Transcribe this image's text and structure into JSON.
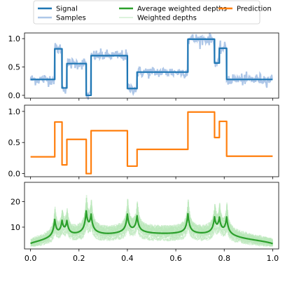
{
  "legend": {
    "items": [
      {
        "label": "Signal",
        "color": "#1f77b4",
        "style": "line-thick"
      },
      {
        "label": "Samples",
        "color": "#aec7e8",
        "style": "line-thick"
      },
      {
        "label": "Average weighted depths",
        "color": "#2ca02c",
        "style": "line-thick"
      },
      {
        "label": "Weighted depths",
        "color": "#b9e7b9",
        "style": "line-thin"
      },
      {
        "label": "Prediction",
        "color": "#ff7f0e",
        "style": "line-thick"
      }
    ]
  },
  "chart_data": [
    {
      "type": "line",
      "xlim": [
        -0.025,
        1.025
      ],
      "ylim": [
        -0.05,
        1.1
      ],
      "yticks": [
        {
          "v": 0.0,
          "label": "0.0"
        },
        {
          "v": 0.5,
          "label": "0.5"
        },
        {
          "v": 1.0,
          "label": "1.0"
        }
      ],
      "series": [
        {
          "name": "Signal",
          "color": "#1f77b4",
          "segments": [
            {
              "x0": 0.0,
              "x1": 0.1,
              "y": 0.28
            },
            {
              "x0": 0.1,
              "x1": 0.13,
              "y": 0.82
            },
            {
              "x0": 0.13,
              "x1": 0.15,
              "y": 0.13
            },
            {
              "x0": 0.15,
              "x1": 0.23,
              "y": 0.56
            },
            {
              "x0": 0.23,
              "x1": 0.25,
              "y": 0.0
            },
            {
              "x0": 0.25,
              "x1": 0.4,
              "y": 0.7
            },
            {
              "x0": 0.4,
              "x1": 0.44,
              "y": 0.12
            },
            {
              "x0": 0.44,
              "x1": 0.65,
              "y": 0.41
            },
            {
              "x0": 0.65,
              "x1": 0.76,
              "y": 0.99
            },
            {
              "x0": 0.76,
              "x1": 0.78,
              "y": 0.57
            },
            {
              "x0": 0.78,
              "x1": 0.81,
              "y": 0.83
            },
            {
              "x0": 0.81,
              "x1": 1.0,
              "y": 0.28
            }
          ]
        },
        {
          "name": "Samples",
          "color": "#aec7e8",
          "noise": 0.05
        }
      ]
    },
    {
      "type": "line",
      "xlim": [
        -0.025,
        1.025
      ],
      "ylim": [
        -0.05,
        1.1
      ],
      "yticks": [
        {
          "v": 0.0,
          "label": "0.0"
        },
        {
          "v": 0.5,
          "label": "0.5"
        },
        {
          "v": 1.0,
          "label": "1.0"
        }
      ],
      "series": [
        {
          "name": "Prediction",
          "color": "#ff7f0e",
          "segments": [
            {
              "x0": 0.0,
              "x1": 0.1,
              "y": 0.27
            },
            {
              "x0": 0.1,
              "x1": 0.13,
              "y": 0.83
            },
            {
              "x0": 0.13,
              "x1": 0.15,
              "y": 0.14
            },
            {
              "x0": 0.15,
              "x1": 0.23,
              "y": 0.55
            },
            {
              "x0": 0.23,
              "x1": 0.25,
              "y": 0.0
            },
            {
              "x0": 0.25,
              "x1": 0.4,
              "y": 0.69
            },
            {
              "x0": 0.4,
              "x1": 0.44,
              "y": 0.12
            },
            {
              "x0": 0.44,
              "x1": 0.65,
              "y": 0.39
            },
            {
              "x0": 0.65,
              "x1": 0.76,
              "y": 0.99
            },
            {
              "x0": 0.76,
              "x1": 0.78,
              "y": 0.58
            },
            {
              "x0": 0.78,
              "x1": 0.81,
              "y": 0.84
            },
            {
              "x0": 0.81,
              "x1": 1.0,
              "y": 0.28
            }
          ]
        }
      ]
    },
    {
      "type": "line",
      "xlim": [
        -0.025,
        1.025
      ],
      "ylim": [
        1.5,
        27.5
      ],
      "yticks": [
        {
          "v": 10,
          "label": "10"
        },
        {
          "v": 20,
          "label": "20"
        }
      ],
      "xticks": [
        {
          "v": 0.0,
          "label": "0.0"
        },
        {
          "v": 0.2,
          "label": "0.2"
        },
        {
          "v": 0.4,
          "label": "0.4"
        },
        {
          "v": 0.6,
          "label": "0.6"
        },
        {
          "v": 0.8,
          "label": "0.8"
        },
        {
          "v": 1.0,
          "label": "1.0"
        }
      ],
      "series": [
        {
          "name": "Average weighted depths",
          "color": "#2ca02c",
          "base": 3.5,
          "peaks": [
            {
              "x": 0.1,
              "h": 8.5
            },
            {
              "x": 0.13,
              "h": 6.5
            },
            {
              "x": 0.15,
              "h": 6.5
            },
            {
              "x": 0.23,
              "h": 10.5
            },
            {
              "x": 0.25,
              "h": 8.5
            },
            {
              "x": 0.4,
              "h": 9.0
            },
            {
              "x": 0.44,
              "h": 8.0
            },
            {
              "x": 0.65,
              "h": 10.0
            },
            {
              "x": 0.76,
              "h": 7.5
            },
            {
              "x": 0.78,
              "h": 7.0
            },
            {
              "x": 0.81,
              "h": 8.5
            }
          ]
        },
        {
          "name": "Weighted depths",
          "color": "#b9e7b9",
          "count": 28
        }
      ]
    }
  ]
}
